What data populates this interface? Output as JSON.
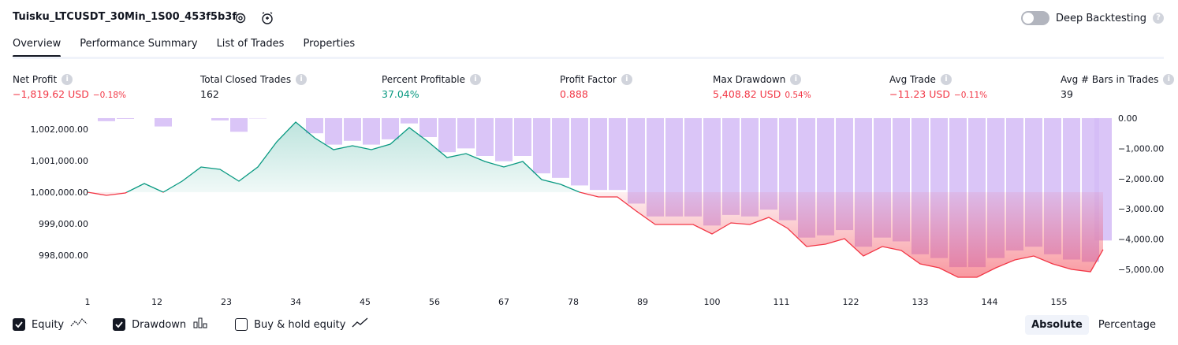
{
  "header": {
    "title": "Tuisku_LTCUSDT_30Min_1S00_453f5b3f",
    "deep_backtesting": {
      "label": "Deep Backtesting",
      "enabled": false
    }
  },
  "tabs": [
    "Overview",
    "Performance Summary",
    "List of Trades",
    "Properties"
  ],
  "active_tab": 0,
  "stats": [
    {
      "label": "Net Profit",
      "value": "−1,819.62 USD",
      "change": "−0.18%",
      "color": "#f23645"
    },
    {
      "label": "Total Closed Trades",
      "value": "162",
      "color": "#131722"
    },
    {
      "label": "Percent Profitable",
      "value": "37.04%",
      "color": "#089981"
    },
    {
      "label": "Profit Factor",
      "value": "0.888",
      "color": "#f23645"
    },
    {
      "label": "Max Drawdown",
      "value": "5,408.82 USD",
      "change": "0.54%",
      "color": "#f23645"
    },
    {
      "label": "Avg Trade",
      "value": "−11.23 USD",
      "change": "−0.11%",
      "color": "#f23645"
    },
    {
      "label": "Avg # Bars in Trades",
      "value": "39",
      "color": "#131722"
    }
  ],
  "chart_data": {
    "type": "line",
    "x": [
      1,
      4,
      7,
      10,
      13,
      16,
      19,
      22,
      25,
      28,
      31,
      34,
      37,
      40,
      43,
      46,
      49,
      52,
      55,
      58,
      61,
      64,
      67,
      70,
      73,
      76,
      79,
      82,
      85,
      88,
      91,
      94,
      97,
      100,
      103,
      106,
      109,
      112,
      115,
      118,
      121,
      124,
      127,
      130,
      133,
      136,
      139,
      142,
      145,
      148,
      151,
      154,
      157,
      160,
      162
    ],
    "series": [
      {
        "name": "Equity",
        "type": "line",
        "axis": "y",
        "checked": true,
        "color": "#089981",
        "negative_color": "#f23645",
        "values": [
          1000000,
          999900,
          999975,
          1000275,
          1000000,
          1000350,
          1000800,
          1000725,
          1000350,
          1000800,
          1001600,
          1002225,
          1001725,
          1001350,
          1001475,
          1001350,
          1001525,
          1002050,
          1001600,
          1001100,
          1001225,
          1000975,
          1000800,
          1000975,
          1000400,
          1000250,
          1000000,
          999850,
          999850,
          999400,
          998975,
          998975,
          998975,
          998675,
          999025,
          998975,
          999200,
          998850,
          998275,
          998350,
          998525,
          997975,
          998275,
          998150,
          997725,
          997600,
          997300,
          997300,
          997600,
          997850,
          997975,
          997725,
          997550,
          997475,
          998180
        ]
      },
      {
        "name": "Drawdown",
        "type": "bar",
        "axis": "y2",
        "checked": true,
        "color": "#d3bbf6",
        "values": [
          0,
          -100,
          -25,
          0,
          -275,
          0,
          0,
          -75,
          -450,
          -10,
          0,
          0,
          -500,
          -875,
          -750,
          -875,
          -700,
          -175,
          -625,
          -1125,
          -1000,
          -1250,
          -1425,
          -1250,
          -1825,
          -1975,
          -2225,
          -2375,
          -2375,
          -2825,
          -3250,
          -3250,
          -3250,
          -3550,
          -3200,
          -3250,
          -3025,
          -3375,
          -3950,
          -3875,
          -3700,
          -4250,
          -3950,
          -4075,
          -4500,
          -4625,
          -4925,
          -4925,
          -4625,
          -4375,
          -4250,
          -4500,
          -4675,
          -4750,
          -4045
        ]
      }
    ],
    "xlim": [
      0.5,
      162.5
    ],
    "xticks": [
      1,
      12,
      23,
      34,
      45,
      56,
      67,
      78,
      89,
      100,
      111,
      122,
      133,
      144,
      155
    ],
    "ylim": [
      997050,
      1002400
    ],
    "yticks": [
      {
        "value": 998000,
        "label": "998,000.00"
      },
      {
        "value": 999000,
        "label": "999,000.00"
      },
      {
        "value": 1000000,
        "label": "1,000,000.00"
      },
      {
        "value": 1001000,
        "label": "1,001,000.00"
      },
      {
        "value": 1002000,
        "label": "1,002,000.00"
      }
    ],
    "y2lim": [
      -5521,
      52
    ],
    "y2ticks": [
      {
        "value": 0,
        "label": "0.00"
      },
      {
        "value": -1000,
        "label": "−1,000.00"
      },
      {
        "value": -2000,
        "label": "−2,000.00"
      },
      {
        "value": -3000,
        "label": "−3,000.00"
      },
      {
        "value": -4000,
        "label": "−4,000.00"
      },
      {
        "value": -5000,
        "label": "−5,000.00"
      }
    ]
  },
  "extra_legend": {
    "label": "Buy & hold equity",
    "checked": false
  },
  "scale_modes": [
    "Absolute",
    "Percentage"
  ],
  "active_scale_mode": 0
}
